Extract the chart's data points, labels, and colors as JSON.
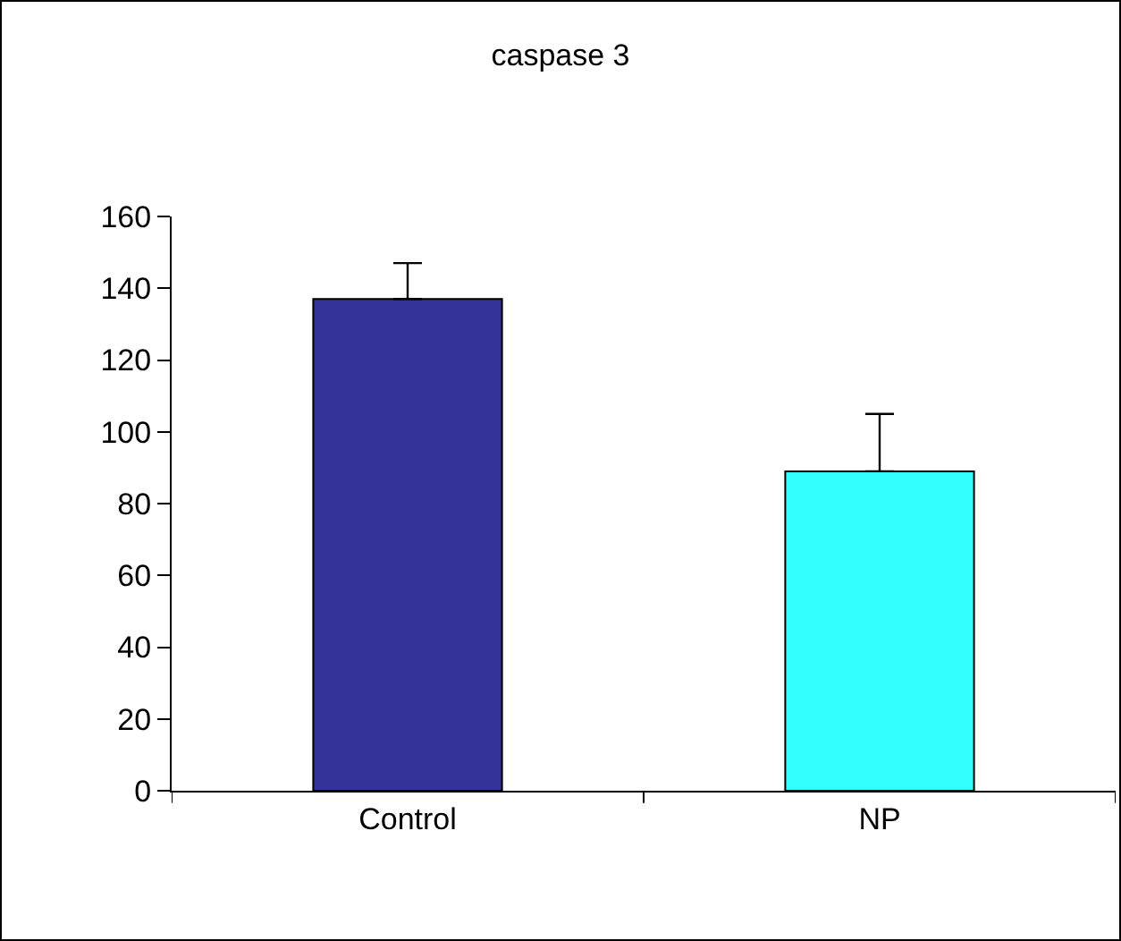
{
  "chart_data": {
    "type": "bar",
    "title": "caspase 3",
    "categories": [
      "Control",
      "NP"
    ],
    "values": [
      137,
      89
    ],
    "colors": [
      "#333399",
      "#33ffff"
    ],
    "errors": [
      [
        137,
        147
      ],
      [
        89,
        105
      ]
    ],
    "ylim": [
      0,
      160
    ],
    "yticks": [
      0,
      20,
      40,
      60,
      80,
      100,
      120,
      140,
      160
    ],
    "grid": false
  }
}
